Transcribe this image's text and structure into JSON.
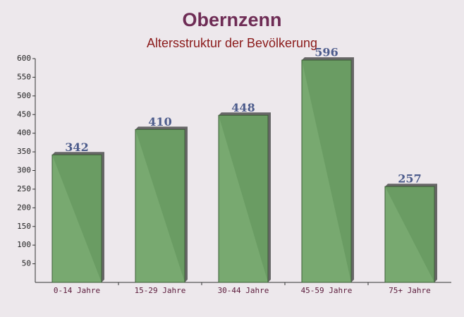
{
  "chart_data": {
    "type": "bar",
    "title": "Obernzenn",
    "subtitle": "Altersstruktur der Bevölkerung",
    "categories": [
      "0-14 Jahre",
      "15-29 Jahre",
      "30-44 Jahre",
      "45-59 Jahre",
      "75+ Jahre"
    ],
    "values": [
      342,
      410,
      448,
      596,
      257
    ],
    "color": "#6aa263",
    "ylim": [
      0,
      600
    ],
    "yticks": [
      50,
      100,
      150,
      200,
      250,
      300,
      350,
      400,
      450,
      500,
      550,
      600
    ],
    "grid": false
  }
}
